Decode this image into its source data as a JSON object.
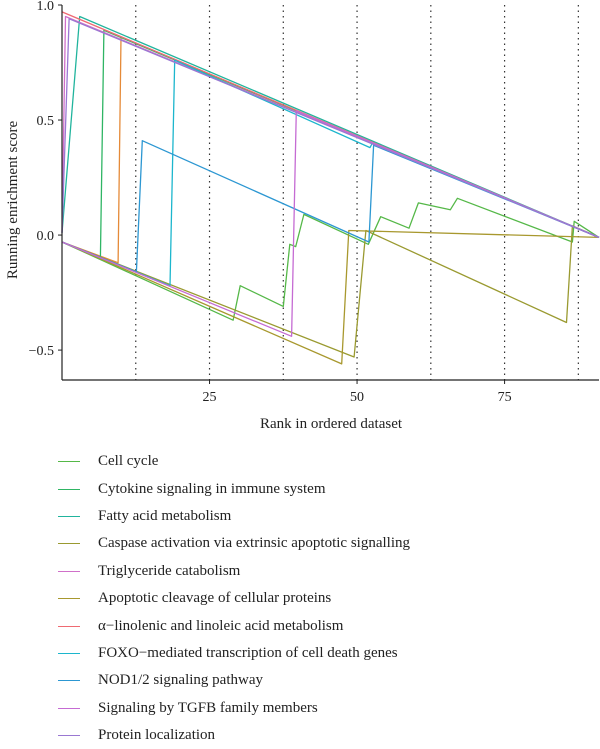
{
  "chart_data": {
    "type": "line",
    "title": "",
    "xlabel": "Rank in ordered dataset",
    "ylabel": "Running enrichment score",
    "xlim": [
      0,
      91
    ],
    "ylim": [
      -0.63,
      1.0
    ],
    "x_ticks": [
      25,
      50,
      75
    ],
    "y_ticks": [
      -0.5,
      0.0,
      0.5,
      1.0
    ],
    "y_tick_labels": [
      "−0.5",
      "0.0",
      "0.5",
      "1.0"
    ],
    "x_tick_labels": [
      "25",
      "50",
      "75"
    ],
    "vertical_dotted_lines": [
      12.5,
      25,
      37.5,
      50,
      62.5,
      75,
      87.5
    ],
    "grid": false,
    "legend_position": "bottom",
    "series": [
      {
        "name": "Cell cycle",
        "color": "#55b848",
        "points": [
          [
            0,
            -0.03
          ],
          [
            29,
            -0.37
          ],
          [
            30.2,
            -0.22
          ],
          [
            37.5,
            -0.31
          ],
          [
            38.6,
            -0.04
          ],
          [
            39.6,
            -0.05
          ],
          [
            41,
            0.09
          ],
          [
            51.9,
            -0.04
          ],
          [
            54,
            0.08
          ],
          [
            58.8,
            0.03
          ],
          [
            60.4,
            0.14
          ],
          [
            65.8,
            0.11
          ],
          [
            67,
            0.16
          ],
          [
            86.5,
            -0.03
          ],
          [
            86.8,
            0.06
          ],
          [
            91,
            -0.01
          ]
        ]
      },
      {
        "name": "Cytokine signaling in immune system",
        "color": "#2fb564",
        "points": [
          [
            0,
            -0.03
          ],
          [
            6.5,
            -0.1
          ],
          [
            7.1,
            0.89
          ],
          [
            91,
            -0.01
          ]
        ]
      },
      {
        "name": "Fatty acid metabolism",
        "color": "#21b49d",
        "points": [
          [
            0,
            0.01
          ],
          [
            3,
            0.95
          ],
          [
            91,
            -0.01
          ]
        ]
      },
      {
        "name": "Caspase activation via extrinsic apoptotic signalling",
        "color": "#9a9a30",
        "points": [
          [
            0,
            -0.03
          ],
          [
            49.5,
            -0.53
          ],
          [
            51.5,
            0.02
          ],
          [
            85.5,
            -0.38
          ],
          [
            86.5,
            0.04
          ],
          [
            91,
            -0.01
          ]
        ]
      },
      {
        "name": "Triglyceride catabolism",
        "color": "#d070c9",
        "points": [
          [
            0,
            0.01
          ],
          [
            0.6,
            0.95
          ],
          [
            91,
            -0.01
          ]
        ]
      },
      {
        "name": "Apoptotic cleavage of cellular proteins",
        "color": "#a8982e",
        "points": [
          [
            0,
            -0.03
          ],
          [
            47.4,
            -0.56
          ],
          [
            48.6,
            0.02
          ],
          [
            91,
            -0.01
          ]
        ]
      },
      {
        "name": "α−linolenic and linoleic acid metabolism",
        "color": "#ef6a72",
        "points": [
          [
            0,
            0.97
          ],
          [
            91,
            -0.01
          ]
        ]
      },
      {
        "name": "FOXO−mediated transcription of cell death genes",
        "color": "#1cb6cd",
        "points": [
          [
            0,
            -0.03
          ],
          [
            18.3,
            -0.22
          ],
          [
            19.1,
            0.76
          ],
          [
            52.2,
            0.38
          ],
          [
            52.6,
            0.4
          ],
          [
            91,
            -0.01
          ]
        ]
      },
      {
        "name": "NOD1/2 signaling pathway",
        "color": "#2c97d2",
        "points": [
          [
            0,
            -0.03
          ],
          [
            12.6,
            -0.16
          ],
          [
            13.6,
            0.41
          ],
          [
            52,
            -0.03
          ],
          [
            52.8,
            0.39
          ],
          [
            91,
            -0.01
          ]
        ]
      },
      {
        "name": "Signaling by TGFB family members",
        "color": "#c56bd3",
        "points": [
          [
            0,
            -0.03
          ],
          [
            38.9,
            -0.44
          ],
          [
            39.7,
            0.54
          ],
          [
            91,
            -0.01
          ]
        ]
      },
      {
        "name": "Protein localization",
        "color": "#9a78d2",
        "points": [
          [
            0,
            0.01
          ],
          [
            1.2,
            0.94
          ],
          [
            91,
            -0.01
          ]
        ]
      }
    ],
    "extra_segments": [
      {
        "color": "#e58a38",
        "points": [
          [
            0,
            -0.03
          ],
          [
            9.5,
            -0.12
          ],
          [
            10,
            0.86
          ],
          [
            91,
            -0.01
          ]
        ]
      }
    ]
  }
}
